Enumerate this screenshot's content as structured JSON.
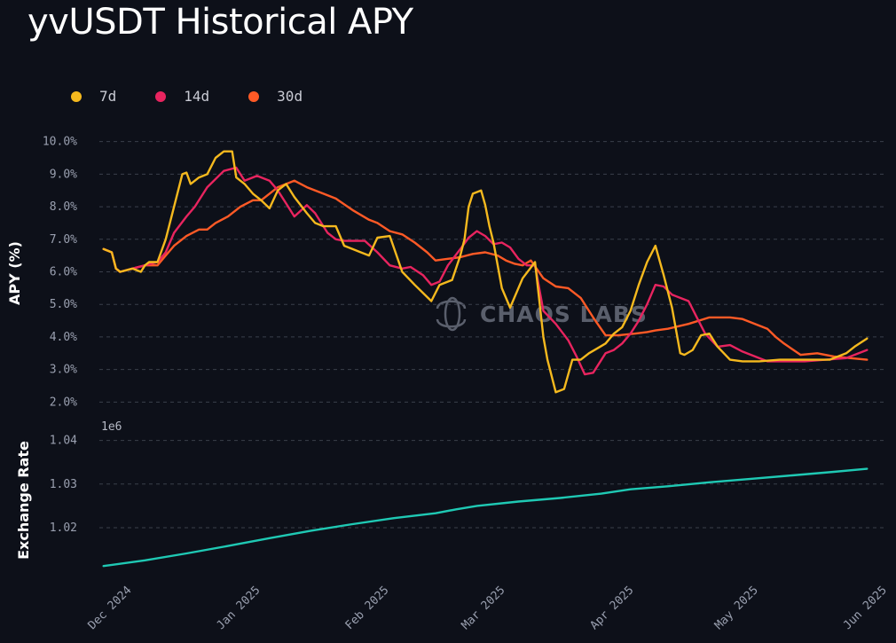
{
  "page": {
    "title": "yvUSDT Historical APY",
    "watermark": "CHAOS LABS"
  },
  "legend": [
    {
      "label": "7d",
      "color": "#f5b91e"
    },
    {
      "label": "14d",
      "color": "#e8245f"
    },
    {
      "label": "30d",
      "color": "#ff5a26"
    }
  ],
  "chart_data": [
    {
      "type": "line",
      "ylabel": "APY (%)",
      "ylim": [
        1.6,
        10.4
      ],
      "yticks": [
        "10.0%",
        "9.0%",
        "8.0%",
        "7.0%",
        "6.0%",
        "5.0%",
        "4.0%",
        "3.0%",
        "2.0%"
      ],
      "ytick_values": [
        10,
        9,
        8,
        7,
        6,
        5,
        4,
        3,
        2
      ],
      "grid": true,
      "legend_position": "top-left",
      "x_range": [
        "2024-11-24",
        "2025-06-01"
      ],
      "series": [
        {
          "name": "7d",
          "color": "#f5b91e",
          "x": [
            "2024-11-25",
            "2024-11-27",
            "2024-11-28",
            "2024-11-29",
            "2024-12-02",
            "2024-12-04",
            "2024-12-05",
            "2024-12-06",
            "2024-12-08",
            "2024-12-10",
            "2024-12-12",
            "2024-12-14",
            "2024-12-15",
            "2024-12-16",
            "2024-12-18",
            "2024-12-20",
            "2024-12-22",
            "2024-12-24",
            "2024-12-26",
            "2024-12-27",
            "2024-12-29",
            "2024-12-31",
            "2025-01-02",
            "2025-01-04",
            "2025-01-06",
            "2025-01-08",
            "2025-01-10",
            "2025-01-13",
            "2025-01-15",
            "2025-01-17",
            "2025-01-20",
            "2025-01-22",
            "2025-01-24",
            "2025-01-26",
            "2025-01-28",
            "2025-01-30",
            "2025-02-02",
            "2025-02-05",
            "2025-02-08",
            "2025-02-12",
            "2025-02-14",
            "2025-02-17",
            "2025-02-19",
            "2025-02-20",
            "2025-02-21",
            "2025-02-22",
            "2025-02-24",
            "2025-02-25",
            "2025-02-26",
            "2025-02-27",
            "2025-03-01",
            "2025-03-03",
            "2025-03-04",
            "2025-03-06",
            "2025-03-09",
            "2025-03-11",
            "2025-03-12",
            "2025-03-14",
            "2025-03-16",
            "2025-03-18",
            "2025-03-20",
            "2025-03-22",
            "2025-03-24",
            "2025-03-26",
            "2025-03-28",
            "2025-03-30",
            "2025-04-01",
            "2025-04-03",
            "2025-04-05",
            "2025-04-07",
            "2025-04-09",
            "2025-04-11",
            "2025-04-13",
            "2025-04-14",
            "2025-04-16",
            "2025-04-18",
            "2025-04-20",
            "2025-04-22",
            "2025-04-25",
            "2025-04-28",
            "2025-05-02",
            "2025-05-07",
            "2025-05-13",
            "2025-05-19",
            "2025-05-23",
            "2025-05-25",
            "2025-05-28"
          ],
          "values": [
            6.7,
            6.6,
            6.1,
            6.0,
            6.1,
            6.0,
            6.2,
            6.3,
            6.3,
            7.0,
            8.0,
            9.0,
            9.05,
            8.7,
            8.9,
            9.0,
            9.5,
            9.7,
            9.7,
            8.9,
            8.7,
            8.4,
            8.2,
            7.95,
            8.5,
            8.7,
            8.3,
            7.8,
            7.5,
            7.4,
            7.4,
            6.8,
            6.7,
            6.6,
            6.5,
            7.05,
            7.1,
            6.0,
            5.6,
            5.1,
            5.6,
            5.75,
            6.5,
            7.0,
            8.0,
            8.4,
            8.5,
            8.05,
            7.4,
            6.9,
            5.5,
            4.9,
            5.2,
            5.8,
            6.3,
            4.0,
            3.3,
            2.3,
            2.4,
            3.3,
            3.3,
            3.5,
            3.65,
            3.8,
            4.1,
            4.3,
            4.8,
            5.6,
            6.3,
            6.8,
            5.9,
            4.9,
            3.5,
            3.45,
            3.6,
            4.05,
            4.1,
            3.7,
            3.3,
            3.25,
            3.25,
            3.3,
            3.3,
            3.3,
            3.5,
            3.7,
            3.95
          ]
        },
        {
          "name": "14d",
          "color": "#e8245f",
          "x": [
            "2024-11-25",
            "2024-11-27",
            "2024-11-28",
            "2024-11-29",
            "2024-12-02",
            "2024-12-05",
            "2024-12-08",
            "2024-12-10",
            "2024-12-12",
            "2024-12-15",
            "2024-12-17",
            "2024-12-20",
            "2024-12-24",
            "2024-12-27",
            "2024-12-29",
            "2025-01-01",
            "2025-01-04",
            "2025-01-06",
            "2025-01-08",
            "2025-01-10",
            "2025-01-13",
            "2025-01-15",
            "2025-01-18",
            "2025-01-20",
            "2025-01-22",
            "2025-01-24",
            "2025-01-27",
            "2025-01-30",
            "2025-02-02",
            "2025-02-05",
            "2025-02-07",
            "2025-02-10",
            "2025-02-12",
            "2025-02-14",
            "2025-02-16",
            "2025-02-19",
            "2025-02-21",
            "2025-02-23",
            "2025-02-25",
            "2025-02-27",
            "2025-03-01",
            "2025-03-03",
            "2025-03-05",
            "2025-03-07",
            "2025-03-09",
            "2025-03-11",
            "2025-03-14",
            "2025-03-17",
            "2025-03-19",
            "2025-03-21",
            "2025-03-23",
            "2025-03-26",
            "2025-03-28",
            "2025-03-30",
            "2025-04-01",
            "2025-04-03",
            "2025-04-05",
            "2025-04-07",
            "2025-04-09",
            "2025-04-11",
            "2025-04-13",
            "2025-04-15",
            "2025-04-17",
            "2025-04-19",
            "2025-04-22",
            "2025-04-25",
            "2025-04-28",
            "2025-05-01",
            "2025-05-04",
            "2025-05-08",
            "2025-05-13",
            "2025-05-18",
            "2025-05-23",
            "2025-05-28"
          ],
          "values": [
            6.7,
            6.6,
            6.1,
            6.0,
            6.1,
            6.2,
            6.3,
            6.6,
            7.2,
            7.7,
            8.0,
            8.6,
            9.1,
            9.2,
            8.8,
            8.95,
            8.8,
            8.5,
            8.1,
            7.7,
            8.05,
            7.8,
            7.2,
            7.0,
            6.95,
            6.95,
            6.95,
            6.6,
            6.2,
            6.1,
            6.15,
            5.9,
            5.6,
            5.7,
            6.2,
            6.7,
            7.05,
            7.25,
            7.1,
            6.85,
            6.9,
            6.75,
            6.4,
            6.2,
            6.2,
            4.8,
            4.4,
            3.9,
            3.4,
            2.85,
            2.9,
            3.5,
            3.6,
            3.8,
            4.1,
            4.5,
            5.0,
            5.6,
            5.55,
            5.3,
            5.2,
            5.1,
            4.6,
            4.1,
            3.7,
            3.75,
            3.55,
            3.4,
            3.25,
            3.25,
            3.25,
            3.3,
            3.35,
            3.6
          ]
        },
        {
          "name": "30d",
          "color": "#ff5a26",
          "x": [
            "2024-11-25",
            "2024-11-27",
            "2024-11-28",
            "2024-11-29",
            "2024-12-02",
            "2024-12-05",
            "2024-12-08",
            "2024-12-10",
            "2024-12-12",
            "2024-12-15",
            "2024-12-18",
            "2024-12-20",
            "2024-12-22",
            "2024-12-25",
            "2024-12-28",
            "2024-12-31",
            "2025-01-02",
            "2025-01-04",
            "2025-01-06",
            "2025-01-10",
            "2025-01-13",
            "2025-01-17",
            "2025-01-20",
            "2025-01-24",
            "2025-01-28",
            "2025-01-30",
            "2025-02-02",
            "2025-02-05",
            "2025-02-08",
            "2025-02-11",
            "2025-02-13",
            "2025-02-16",
            "2025-02-19",
            "2025-02-22",
            "2025-02-25",
            "2025-02-28",
            "2025-03-02",
            "2025-03-04",
            "2025-03-06",
            "2025-03-08",
            "2025-03-11",
            "2025-03-14",
            "2025-03-17",
            "2025-03-20",
            "2025-03-23",
            "2025-03-26",
            "2025-03-29",
            "2025-04-02",
            "2025-04-05",
            "2025-04-07",
            "2025-04-10",
            "2025-04-15",
            "2025-04-20",
            "2025-04-25",
            "2025-04-28",
            "2025-05-01",
            "2025-05-04",
            "2025-05-06",
            "2025-05-08",
            "2025-05-12",
            "2025-05-16",
            "2025-05-20",
            "2025-05-24",
            "2025-05-28"
          ],
          "values": [
            6.7,
            6.6,
            6.1,
            6.0,
            6.1,
            6.2,
            6.2,
            6.5,
            6.8,
            7.1,
            7.3,
            7.3,
            7.5,
            7.7,
            8.0,
            8.2,
            8.2,
            8.4,
            8.6,
            8.8,
            8.6,
            8.4,
            8.25,
            7.9,
            7.6,
            7.5,
            7.25,
            7.15,
            6.9,
            6.6,
            6.35,
            6.4,
            6.45,
            6.55,
            6.6,
            6.5,
            6.35,
            6.25,
            6.2,
            6.35,
            5.8,
            5.55,
            5.5,
            5.2,
            4.6,
            4.05,
            4.05,
            4.1,
            4.15,
            4.2,
            4.25,
            4.4,
            4.6,
            4.6,
            4.55,
            4.4,
            4.25,
            4.0,
            3.8,
            3.45,
            3.5,
            3.4,
            3.35,
            3.3
          ]
        }
      ]
    },
    {
      "type": "line",
      "ylabel": "Exchange Rate",
      "yscale_label": "1e6",
      "ylim": [
        1.0084,
        1.0442
      ],
      "yticks": [
        "1.04",
        "1.03",
        "1.02"
      ],
      "ytick_values": [
        1.04,
        1.03,
        1.02
      ],
      "grid": true,
      "x_range": [
        "2024-11-24",
        "2025-06-01"
      ],
      "xticks": [
        "Dec 2024",
        "Jan 2025",
        "Feb 2025",
        "Mar 2025",
        "Apr 2025",
        "May 2025",
        "Jun 2025"
      ],
      "xtick_dates": [
        "2024-12-01",
        "2025-01-01",
        "2025-02-01",
        "2025-03-01",
        "2025-04-01",
        "2025-05-01",
        "2025-06-01"
      ],
      "series": [
        {
          "name": "Exchange Rate",
          "color": "#1fc9b4",
          "x": [
            "2024-11-25",
            "2024-12-05",
            "2024-12-15",
            "2024-12-25",
            "2025-01-04",
            "2025-01-14",
            "2025-01-24",
            "2025-02-03",
            "2025-02-13",
            "2025-02-18",
            "2025-02-23",
            "2025-03-05",
            "2025-03-15",
            "2025-03-25",
            "2025-04-01",
            "2025-04-10",
            "2025-04-20",
            "2025-04-30",
            "2025-05-10",
            "2025-05-20",
            "2025-05-28"
          ],
          "values": [
            1.0112,
            1.0125,
            1.0141,
            1.0158,
            1.0176,
            1.0193,
            1.0208,
            1.0222,
            1.0233,
            1.0242,
            1.025,
            1.026,
            1.0268,
            1.0278,
            1.0288,
            1.0295,
            1.0304,
            1.0312,
            1.032,
            1.0328,
            1.0335
          ]
        }
      ]
    }
  ]
}
